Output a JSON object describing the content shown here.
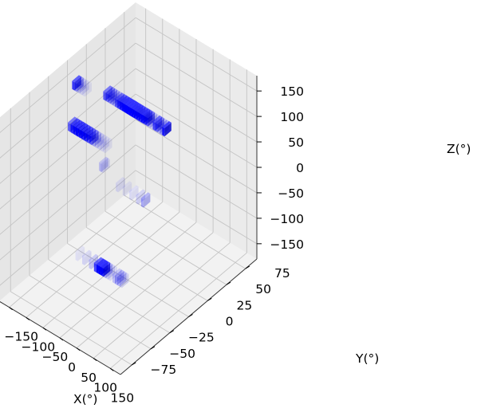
{
  "chart_data": {
    "type": "scatter",
    "title": "",
    "xlabel": "X(°)",
    "ylabel": "Y(°)",
    "zlabel": "Z(°)",
    "xlim": [
      -180,
      180
    ],
    "ylim": [
      -90,
      90
    ],
    "zlim": [
      -180,
      180
    ],
    "xticks": [
      -150,
      -100,
      -50,
      0,
      50,
      100,
      150
    ],
    "yticks": [
      -75,
      -50,
      -25,
      0,
      25,
      50,
      75
    ],
    "zticks": [
      -150,
      -100,
      -50,
      0,
      50,
      100,
      150
    ],
    "xtick_labels": [
      "−150",
      "−100",
      "−50",
      "0",
      "50",
      "100",
      "150"
    ],
    "ytick_labels": [
      "−75",
      "−50",
      "−25",
      "0",
      "25",
      "50",
      "75"
    ],
    "ztick_labels": [
      "−150",
      "−100",
      "−50",
      "0",
      "50",
      "100",
      "150"
    ],
    "grid": true,
    "marker_color": "#0000ff",
    "series": [
      {
        "values": [
          {
            "x": -175,
            "y": 10,
            "z": 125,
            "alpha": 0.75
          },
          {
            "x": -168,
            "y": 10,
            "z": 125,
            "alpha": 0.45
          },
          {
            "x": -160,
            "y": 10,
            "z": 125,
            "alpha": 0.2
          },
          {
            "x": -152,
            "y": 10,
            "z": 125,
            "alpha": 0.12
          },
          {
            "x": -144,
            "y": 10,
            "z": 125,
            "alpha": 0.08
          },
          {
            "x": -105,
            "y": 20,
            "z": 120,
            "alpha": 0.6
          },
          {
            "x": -98,
            "y": 20,
            "z": 120,
            "alpha": 0.55
          },
          {
            "x": -91,
            "y": 20,
            "z": 120,
            "alpha": 0.45
          },
          {
            "x": -84,
            "y": 20,
            "z": 120,
            "alpha": 0.35
          },
          {
            "x": -77,
            "y": 20,
            "z": 120,
            "alpha": 0.3
          },
          {
            "x": -70,
            "y": 20,
            "z": 120,
            "alpha": 0.6
          },
          {
            "x": -63,
            "y": 20,
            "z": 120,
            "alpha": 0.7
          },
          {
            "x": -56,
            "y": 20,
            "z": 120,
            "alpha": 0.85
          },
          {
            "x": -49,
            "y": 20,
            "z": 120,
            "alpha": 0.95
          },
          {
            "x": -42,
            "y": 20,
            "z": 120,
            "alpha": 1.0
          },
          {
            "x": -35,
            "y": 20,
            "z": 120,
            "alpha": 1.0
          },
          {
            "x": -28,
            "y": 20,
            "z": 120,
            "alpha": 1.0
          },
          {
            "x": -21,
            "y": 20,
            "z": 120,
            "alpha": 0.95
          },
          {
            "x": -14,
            "y": 20,
            "z": 120,
            "alpha": 0.9
          },
          {
            "x": -7,
            "y": 20,
            "z": 120,
            "alpha": 0.85
          },
          {
            "x": 0,
            "y": 20,
            "z": 120,
            "alpha": 0.8
          },
          {
            "x": 7,
            "y": 20,
            "z": 120,
            "alpha": 0.85
          },
          {
            "x": 14,
            "y": 20,
            "z": 120,
            "alpha": 0.7
          },
          {
            "x": 21,
            "y": 20,
            "z": 120,
            "alpha": 0.55
          },
          {
            "x": 28,
            "y": 20,
            "z": 120,
            "alpha": 0.25
          },
          {
            "x": 35,
            "y": 20,
            "z": 120,
            "alpha": 0.15
          },
          {
            "x": 42,
            "y": 20,
            "z": 120,
            "alpha": 0.65
          },
          {
            "x": 49,
            "y": 20,
            "z": 120,
            "alpha": 0.55
          },
          {
            "x": 56,
            "y": 20,
            "z": 120,
            "alpha": 0.25
          },
          {
            "x": 63,
            "y": 20,
            "z": 120,
            "alpha": 0.35
          },
          {
            "x": 70,
            "y": 20,
            "z": 120,
            "alpha": 0.85
          },
          {
            "x": 0,
            "y": 25,
            "z": 110,
            "alpha": 0.2
          },
          {
            "x": 10,
            "y": 25,
            "z": 110,
            "alpha": 0.15
          },
          {
            "x": -165,
            "y": 0,
            "z": 60,
            "alpha": 0.6
          },
          {
            "x": -157,
            "y": 0,
            "z": 60,
            "alpha": 0.8
          },
          {
            "x": -149,
            "y": 0,
            "z": 60,
            "alpha": 0.9
          },
          {
            "x": -141,
            "y": 0,
            "z": 60,
            "alpha": 0.95
          },
          {
            "x": -133,
            "y": 0,
            "z": 60,
            "alpha": 0.9
          },
          {
            "x": -125,
            "y": 0,
            "z": 60,
            "alpha": 0.85
          },
          {
            "x": -117,
            "y": 0,
            "z": 60,
            "alpha": 0.8
          },
          {
            "x": -109,
            "y": 0,
            "z": 60,
            "alpha": 0.7
          },
          {
            "x": -101,
            "y": 0,
            "z": 60,
            "alpha": 0.6
          },
          {
            "x": -93,
            "y": 0,
            "z": 60,
            "alpha": 0.3
          },
          {
            "x": -85,
            "y": 0,
            "z": 60,
            "alpha": 0.2
          },
          {
            "x": -77,
            "y": 0,
            "z": 60,
            "alpha": 0.12
          },
          {
            "x": -69,
            "y": 0,
            "z": 60,
            "alpha": 0.1
          },
          {
            "x": -61,
            "y": 0,
            "z": 60,
            "alpha": 0.08
          },
          {
            "x": -50,
            "y": -10,
            "z": 40,
            "alpha": 0.2
          },
          {
            "x": -45,
            "y": -10,
            "z": 40,
            "alpha": 0.12
          },
          {
            "x": 0,
            "y": -10,
            "z": 20,
            "alpha": 0.1
          },
          {
            "x": 20,
            "y": -10,
            "z": 20,
            "alpha": 0.08
          },
          {
            "x": 40,
            "y": -10,
            "z": 20,
            "alpha": 0.1
          },
          {
            "x": 60,
            "y": -10,
            "z": 20,
            "alpha": 0.15
          },
          {
            "x": 75,
            "y": -10,
            "z": 20,
            "alpha": 0.3
          },
          {
            "x": -75,
            "y": -30,
            "z": -120,
            "alpha": 0.08
          },
          {
            "x": -55,
            "y": -30,
            "z": -120,
            "alpha": 0.12
          },
          {
            "x": -35,
            "y": -30,
            "z": -120,
            "alpha": 0.2
          },
          {
            "x": -20,
            "y": -30,
            "z": -120,
            "alpha": 0.7
          },
          {
            "x": -13,
            "y": -30,
            "z": -120,
            "alpha": 0.95
          },
          {
            "x": -6,
            "y": -30,
            "z": -120,
            "alpha": 1.0
          },
          {
            "x": 1,
            "y": -30,
            "z": -120,
            "alpha": 0.85
          },
          {
            "x": 8,
            "y": -30,
            "z": -120,
            "alpha": 0.3
          },
          {
            "x": 15,
            "y": -30,
            "z": -120,
            "alpha": 0.15
          },
          {
            "x": 22,
            "y": -30,
            "z": -120,
            "alpha": 0.1
          },
          {
            "x": 35,
            "y": -30,
            "z": -120,
            "alpha": 0.2
          },
          {
            "x": 42,
            "y": -30,
            "z": -120,
            "alpha": 0.3
          },
          {
            "x": 49,
            "y": -30,
            "z": -120,
            "alpha": 0.25
          },
          {
            "x": 56,
            "y": -30,
            "z": -120,
            "alpha": 0.15
          }
        ]
      }
    ]
  }
}
